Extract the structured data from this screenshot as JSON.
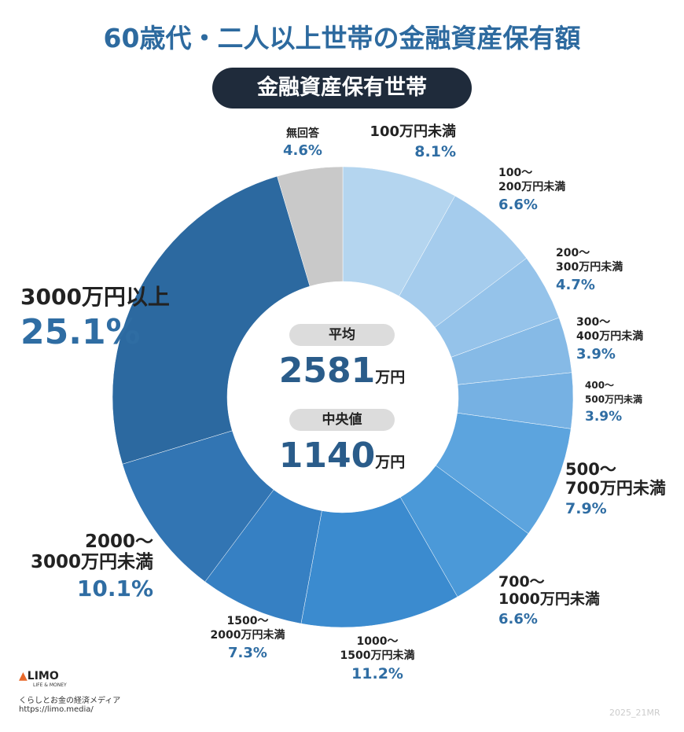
{
  "chart_data": {
    "type": "pie",
    "title": "60歳代・二人以上世帯の金融資産保有額",
    "subtitle": "金融資産保有世帯",
    "categories": [
      "100万円未満",
      "100～\n200万円未満",
      "200～\n300万円未満",
      "300～\n400万円未満",
      "400～\n500万円未満",
      "500～\n700万円未満",
      "700～\n1000万円未満",
      "1000～\n1500万円未満",
      "1500～\n2000万円未満",
      "2000～\n3000万円未満",
      "3000万円以上",
      "無回答"
    ],
    "values": [
      8.1,
      6.6,
      4.7,
      3.9,
      3.9,
      7.9,
      6.6,
      11.2,
      7.3,
      10.1,
      25.1,
      4.6
    ],
    "value_labels": [
      "8.1%",
      "6.6%",
      "4.7%",
      "3.9%",
      "3.9%",
      "7.9%",
      "6.6%",
      "11.2%",
      "7.3%",
      "10.1%",
      "25.1%",
      "4.6%"
    ],
    "colors": [
      "#b4d5ef",
      "#a5cced",
      "#95c3ea",
      "#86bae6",
      "#76b1e3",
      "#5ca4de",
      "#4b99d8",
      "#3b8bcf",
      "#3680c3",
      "#3275b3",
      "#2c69a0",
      "#c9c9c9"
    ],
    "center": {
      "mean_label": "平均",
      "mean_value": "2581",
      "mean_unit": "万円",
      "median_label": "中央値",
      "median_value": "1140",
      "median_unit": "万円"
    },
    "footer": {
      "logo": "LIMO",
      "logo_sub": "LIFE & MONEY",
      "tagline": "くらしとお金の経済メディア",
      "url": "https://limo.media/",
      "code": "2025_21MR"
    }
  }
}
